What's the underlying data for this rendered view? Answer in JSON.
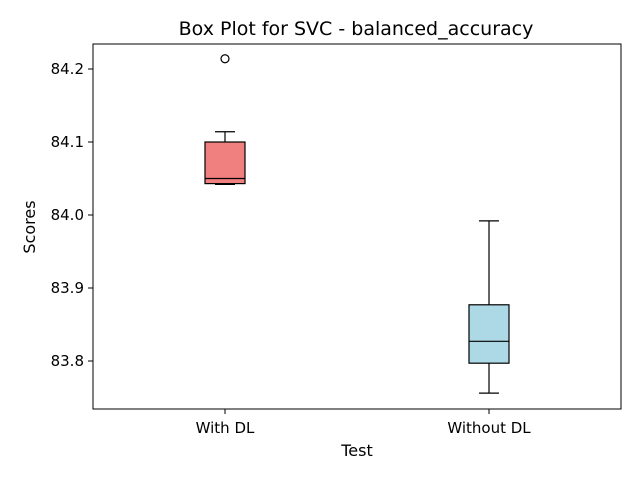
{
  "chart_data": {
    "type": "box",
    "title": "Box Plot for SVC - balanced_accuracy",
    "xlabel": "Test",
    "ylabel": "Scores",
    "categories": [
      "With DL",
      "Without DL"
    ],
    "ylim": [
      83.735,
      84.235
    ],
    "yticks": [
      83.8,
      83.9,
      84.0,
      84.1,
      84.2
    ],
    "ytick_labels": [
      "83.8",
      "83.9",
      "84.0",
      "84.1",
      "84.2"
    ],
    "grid": false,
    "series": [
      {
        "category": "With DL",
        "color": "#f08080",
        "whisker_low": 84.042,
        "q1": 84.043,
        "median": 84.05,
        "q3": 84.1,
        "whisker_high": 84.114,
        "outliers": [
          84.214
        ]
      },
      {
        "category": "Without DL",
        "color": "#add8e6",
        "whisker_low": 83.756,
        "q1": 83.797,
        "median": 83.827,
        "q3": 83.877,
        "whisker_high": 83.992,
        "outliers": []
      }
    ]
  }
}
